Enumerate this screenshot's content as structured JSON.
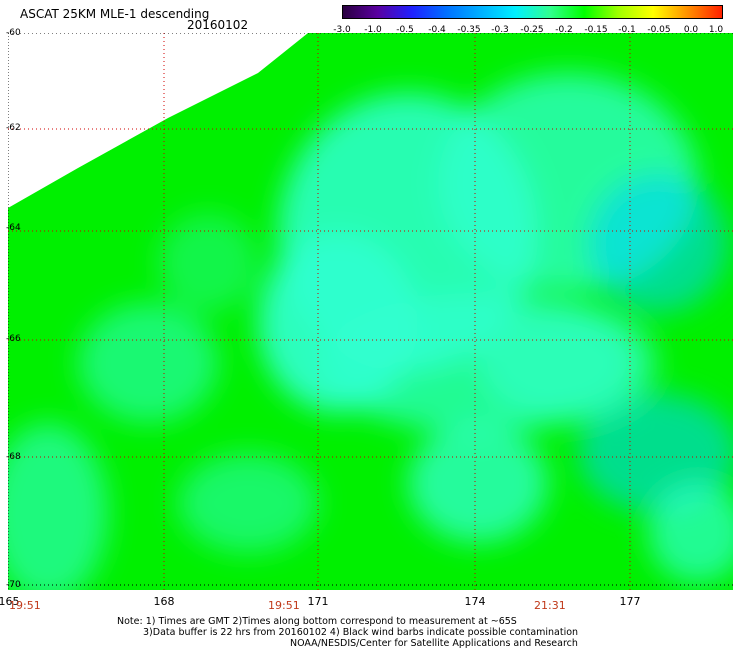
{
  "header": {
    "title": "ASCAT 25KM MLE-1 descending",
    "date": "20160102"
  },
  "colorbar": {
    "labels": [
      "-3.0",
      "-1.0",
      "-0.5",
      "-0.4",
      "-0.35",
      "-0.3",
      "-0.25",
      "-0.2",
      "-0.15",
      "-0.1",
      "-0.05",
      "0.0",
      "1.0"
    ],
    "colors": [
      "#2a0040",
      "#5a00a0",
      "#2020ff",
      "#0070ff",
      "#00b0ff",
      "#00f0ff",
      "#30ff90",
      "#00ff00",
      "#a0ff00",
      "#ffff00",
      "#ff9000",
      "#ff2000"
    ]
  },
  "map": {
    "latitudes": [
      "-60",
      "-62",
      "-64",
      "-66",
      "-68",
      "-70"
    ],
    "longitudes": [
      "165",
      "168",
      "171",
      "174",
      "177"
    ],
    "times": [
      "19:51",
      "19:51",
      "21:31"
    ],
    "grid_color": "#d00000",
    "field_colors": {
      "green": "#00f000",
      "cyan": "#30ffd0",
      "light_blue": "#00d0ff"
    }
  },
  "notes": {
    "line1": "Note: 1) Times are GMT 2)Times along bottom correspond to measurement at ~65S",
    "line2": "3)Data buffer is 22 hrs from 20160102 4) Black wind barbs indicate possible contamination",
    "line3": "NOAA/NESDIS/Center for Satellite Applications and Research"
  }
}
